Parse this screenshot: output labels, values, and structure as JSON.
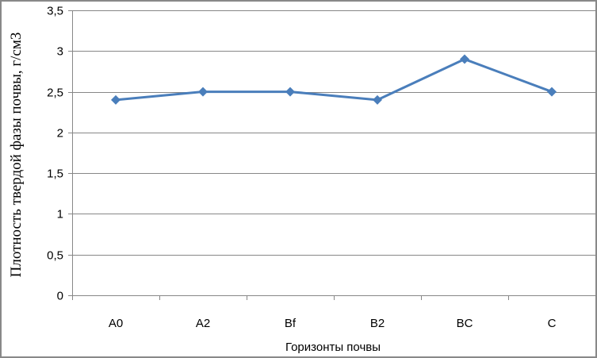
{
  "chart_data": {
    "type": "line",
    "categories": [
      "A0",
      "A2",
      "Bf",
      "B2",
      "BC",
      "C"
    ],
    "series": [
      {
        "values": [
          2.4,
          2.5,
          2.5,
          2.4,
          2.9,
          2.5
        ]
      }
    ],
    "xlabel": "Горизонты почвы",
    "ylabel": "Плотность твердой фазы почвы, г/см3",
    "ylim": [
      0,
      3.5
    ],
    "yticks": [
      "0",
      "0,5",
      "1",
      "1,5",
      "2",
      "2,5",
      "3",
      "3,5"
    ],
    "grid": true,
    "marker": "diamond",
    "line_color": "#4a7ebb",
    "legend": "none"
  }
}
